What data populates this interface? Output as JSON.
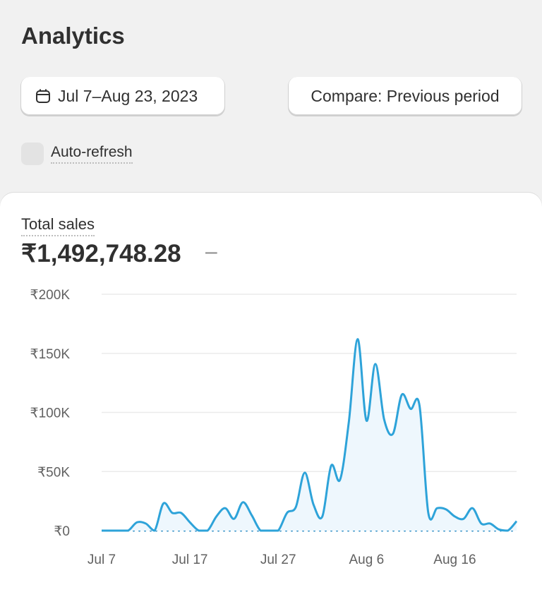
{
  "page_title": "Analytics",
  "date_range": {
    "label": "Jul 7–Aug 23, 2023",
    "icon": "calendar-icon"
  },
  "compare": {
    "label": "Compare: Previous period"
  },
  "auto_refresh": {
    "label": "Auto-refresh",
    "checked": false
  },
  "metric": {
    "label": "Total sales",
    "value": "₹1,492,748.28",
    "change": "–"
  },
  "colors": {
    "line": "#2ea3d9",
    "comparison": "#2a8cc4",
    "fill": "#eef7fd"
  },
  "chart_data": {
    "type": "line",
    "x_ticks": [
      "Jul 7",
      "Jul 17",
      "Jul 27",
      "Aug 6",
      "Aug 16"
    ],
    "y_ticks": [
      "₹0",
      "₹50K",
      "₹100K",
      "₹150K",
      "₹200K"
    ],
    "ylim": [
      0,
      200000
    ],
    "grid": true,
    "x_start": "2023-07-07",
    "x_end": "2023-08-23",
    "series": [
      {
        "style": "solid",
        "values": [
          0,
          0,
          0,
          0,
          7000,
          6000,
          0,
          23000,
          15000,
          15000,
          7000,
          0,
          0,
          12000,
          19000,
          10000,
          24000,
          13000,
          0,
          0,
          0,
          15000,
          20000,
          49000,
          22000,
          12000,
          55000,
          43000,
          92000,
          162000,
          93000,
          141000,
          94000,
          82000,
          115000,
          103000,
          106000,
          15000,
          19000,
          18000,
          12000,
          10000,
          19000,
          6000,
          6000,
          1000,
          0,
          8000
        ]
      },
      {
        "style": "dotted",
        "values": [
          null,
          null,
          null,
          0,
          0,
          0,
          0,
          0,
          0,
          0,
          0,
          0,
          0,
          0,
          0,
          0,
          0,
          0,
          0,
          0,
          0,
          0,
          0,
          0,
          0,
          0,
          0,
          0,
          0,
          0,
          0,
          0,
          0,
          0,
          0,
          0,
          0,
          0,
          0,
          0,
          0,
          0,
          0,
          0,
          0,
          0,
          0,
          0
        ]
      }
    ]
  }
}
